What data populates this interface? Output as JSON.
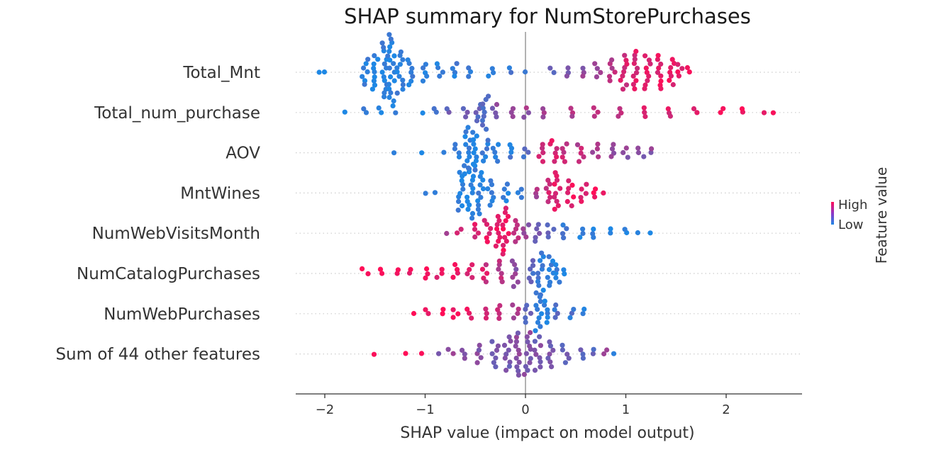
{
  "chart_data": {
    "type": "scatter",
    "subtype": "shap_beeswarm",
    "title": "SHAP summary for NumStorePurchases",
    "xlabel": "SHAP value (impact on model output)",
    "ylabel": "",
    "xlim": [
      -2.3,
      2.75
    ],
    "xticks": [
      -2,
      -1,
      0,
      1,
      2
    ],
    "xtick_labels": [
      "−2",
      "−1",
      "0",
      "1",
      "2"
    ],
    "zero_line": 0,
    "colormap": {
      "low": "#1E88E5",
      "high": "#FF0D57",
      "legend_high": "High",
      "legend_low": "Low",
      "legend_title": "Feature value"
    },
    "features": [
      {
        "name": "Total_Mnt",
        "points": [
          {
            "x": -2.06,
            "v": 0.0,
            "n": 1
          },
          {
            "x": -2.0,
            "v": 0.0,
            "n": 1
          },
          {
            "x": -1.6,
            "v": 0.05,
            "n": 7
          },
          {
            "x": -1.5,
            "v": 0.05,
            "n": 9
          },
          {
            "x": -1.4,
            "v": 0.05,
            "n": 14
          },
          {
            "x": -1.33,
            "v": 0.05,
            "n": 18
          },
          {
            "x": -1.25,
            "v": 0.05,
            "n": 11
          },
          {
            "x": -1.15,
            "v": 0.1,
            "n": 7
          },
          {
            "x": -1.0,
            "v": 0.1,
            "n": 5
          },
          {
            "x": -0.85,
            "v": 0.1,
            "n": 4
          },
          {
            "x": -0.7,
            "v": 0.1,
            "n": 4
          },
          {
            "x": -0.55,
            "v": 0.1,
            "n": 3
          },
          {
            "x": -0.35,
            "v": 0.1,
            "n": 3
          },
          {
            "x": -0.15,
            "v": 0.1,
            "n": 2
          },
          {
            "x": -0.03,
            "v": 0.1,
            "n": 1
          },
          {
            "x": 0.27,
            "v": 0.3,
            "n": 2
          },
          {
            "x": 0.42,
            "v": 0.4,
            "n": 3
          },
          {
            "x": 0.58,
            "v": 0.5,
            "n": 3
          },
          {
            "x": 0.72,
            "v": 0.6,
            "n": 4
          },
          {
            "x": 0.86,
            "v": 0.7,
            "n": 6
          },
          {
            "x": 0.98,
            "v": 0.82,
            "n": 9
          },
          {
            "x": 1.1,
            "v": 0.85,
            "n": 10
          },
          {
            "x": 1.22,
            "v": 0.88,
            "n": 9
          },
          {
            "x": 1.33,
            "v": 0.9,
            "n": 9
          },
          {
            "x": 1.45,
            "v": 0.9,
            "n": 7
          },
          {
            "x": 1.55,
            "v": 0.92,
            "n": 4
          },
          {
            "x": 1.63,
            "v": 0.95,
            "n": 2
          }
        ]
      },
      {
        "name": "Total_num_purchase",
        "points": [
          {
            "x": -1.8,
            "v": 0.05,
            "n": 1
          },
          {
            "x": -1.6,
            "v": 0.05,
            "n": 2
          },
          {
            "x": -1.45,
            "v": 0.05,
            "n": 2
          },
          {
            "x": -1.3,
            "v": 0.05,
            "n": 1
          },
          {
            "x": -1.05,
            "v": 0.05,
            "n": 1
          },
          {
            "x": -0.9,
            "v": 0.2,
            "n": 2
          },
          {
            "x": -0.75,
            "v": 0.3,
            "n": 2
          },
          {
            "x": -0.6,
            "v": 0.3,
            "n": 3
          },
          {
            "x": -0.48,
            "v": 0.3,
            "n": 5
          },
          {
            "x": -0.4,
            "v": 0.25,
            "n": 9
          },
          {
            "x": -0.3,
            "v": 0.45,
            "n": 4
          },
          {
            "x": -0.15,
            "v": 0.5,
            "n": 3
          },
          {
            "x": 0.0,
            "v": 0.55,
            "n": 3
          },
          {
            "x": 0.2,
            "v": 0.6,
            "n": 3
          },
          {
            "x": 0.45,
            "v": 0.65,
            "n": 3
          },
          {
            "x": 0.7,
            "v": 0.7,
            "n": 3
          },
          {
            "x": 0.95,
            "v": 0.75,
            "n": 3
          },
          {
            "x": 1.2,
            "v": 0.8,
            "n": 3
          },
          {
            "x": 1.45,
            "v": 0.85,
            "n": 3
          },
          {
            "x": 1.7,
            "v": 0.9,
            "n": 2
          },
          {
            "x": 1.95,
            "v": 0.92,
            "n": 2
          },
          {
            "x": 2.15,
            "v": 0.95,
            "n": 2
          },
          {
            "x": 2.35,
            "v": 0.95,
            "n": 1
          },
          {
            "x": 2.5,
            "v": 1.0,
            "n": 1
          }
        ]
      },
      {
        "name": "AOV",
        "points": [
          {
            "x": -1.3,
            "v": 0.0,
            "n": 1
          },
          {
            "x": -1.02,
            "v": 0.0,
            "n": 1
          },
          {
            "x": -0.8,
            "v": 0.05,
            "n": 1
          },
          {
            "x": -0.68,
            "v": 0.05,
            "n": 4
          },
          {
            "x": -0.58,
            "v": 0.05,
            "n": 12
          },
          {
            "x": -0.5,
            "v": 0.05,
            "n": 10
          },
          {
            "x": -0.4,
            "v": 0.08,
            "n": 6
          },
          {
            "x": -0.3,
            "v": 0.1,
            "n": 5
          },
          {
            "x": -0.15,
            "v": 0.1,
            "n": 4
          },
          {
            "x": 0.0,
            "v": 0.2,
            "n": 3
          },
          {
            "x": 0.15,
            "v": 0.75,
            "n": 5
          },
          {
            "x": 0.28,
            "v": 0.85,
            "n": 6
          },
          {
            "x": 0.4,
            "v": 0.75,
            "n": 5
          },
          {
            "x": 0.55,
            "v": 0.7,
            "n": 5
          },
          {
            "x": 0.7,
            "v": 0.6,
            "n": 4
          },
          {
            "x": 0.85,
            "v": 0.55,
            "n": 4
          },
          {
            "x": 1.0,
            "v": 0.5,
            "n": 3
          },
          {
            "x": 1.15,
            "v": 0.45,
            "n": 3
          },
          {
            "x": 1.27,
            "v": 0.5,
            "n": 2
          }
        ]
      },
      {
        "name": "MntWines",
        "points": [
          {
            "x": -1.0,
            "v": 0.0,
            "n": 1
          },
          {
            "x": -0.9,
            "v": 0.0,
            "n": 1
          },
          {
            "x": -0.65,
            "v": 0.05,
            "n": 10
          },
          {
            "x": -0.55,
            "v": 0.05,
            "n": 14
          },
          {
            "x": -0.45,
            "v": 0.05,
            "n": 11
          },
          {
            "x": -0.35,
            "v": 0.05,
            "n": 7
          },
          {
            "x": -0.2,
            "v": 0.08,
            "n": 5
          },
          {
            "x": -0.05,
            "v": 0.1,
            "n": 3
          },
          {
            "x": 0.1,
            "v": 0.6,
            "n": 3
          },
          {
            "x": 0.22,
            "v": 0.8,
            "n": 6
          },
          {
            "x": 0.32,
            "v": 0.85,
            "n": 10
          },
          {
            "x": 0.45,
            "v": 0.9,
            "n": 7
          },
          {
            "x": 0.58,
            "v": 0.92,
            "n": 5
          },
          {
            "x": 0.7,
            "v": 0.95,
            "n": 3
          },
          {
            "x": 0.79,
            "v": 1.0,
            "n": 1
          }
        ]
      },
      {
        "name": "NumWebVisitsMonth",
        "points": [
          {
            "x": -0.8,
            "v": 0.6,
            "n": 1
          },
          {
            "x": -0.65,
            "v": 0.75,
            "n": 2
          },
          {
            "x": -0.5,
            "v": 0.85,
            "n": 4
          },
          {
            "x": -0.38,
            "v": 0.88,
            "n": 6
          },
          {
            "x": -0.27,
            "v": 0.9,
            "n": 8
          },
          {
            "x": -0.2,
            "v": 0.9,
            "n": 12
          },
          {
            "x": -0.1,
            "v": 0.75,
            "n": 6
          },
          {
            "x": 0.0,
            "v": 0.5,
            "n": 4
          },
          {
            "x": 0.12,
            "v": 0.35,
            "n": 5
          },
          {
            "x": 0.25,
            "v": 0.25,
            "n": 4
          },
          {
            "x": 0.4,
            "v": 0.15,
            "n": 4
          },
          {
            "x": 0.55,
            "v": 0.1,
            "n": 3
          },
          {
            "x": 0.7,
            "v": 0.05,
            "n": 3
          },
          {
            "x": 0.85,
            "v": 0.05,
            "n": 2
          },
          {
            "x": 1.0,
            "v": 0.0,
            "n": 2
          },
          {
            "x": 1.15,
            "v": 0.0,
            "n": 1
          },
          {
            "x": 1.27,
            "v": 0.0,
            "n": 1
          }
        ]
      },
      {
        "name": "NumCatalogPurchases",
        "points": [
          {
            "x": -1.6,
            "v": 1.0,
            "n": 2
          },
          {
            "x": -1.45,
            "v": 1.0,
            "n": 2
          },
          {
            "x": -1.3,
            "v": 1.0,
            "n": 2
          },
          {
            "x": -1.15,
            "v": 0.95,
            "n": 2
          },
          {
            "x": -1.0,
            "v": 0.95,
            "n": 3
          },
          {
            "x": -0.85,
            "v": 0.9,
            "n": 3
          },
          {
            "x": -0.7,
            "v": 0.9,
            "n": 4
          },
          {
            "x": -0.55,
            "v": 0.85,
            "n": 4
          },
          {
            "x": -0.4,
            "v": 0.8,
            "n": 5
          },
          {
            "x": -0.25,
            "v": 0.7,
            "n": 6
          },
          {
            "x": -0.1,
            "v": 0.5,
            "n": 7
          },
          {
            "x": 0.05,
            "v": 0.25,
            "n": 6
          },
          {
            "x": 0.15,
            "v": 0.1,
            "n": 11
          },
          {
            "x": 0.25,
            "v": 0.05,
            "n": 8
          },
          {
            "x": 0.33,
            "v": 0.05,
            "n": 5
          },
          {
            "x": 0.41,
            "v": 0.0,
            "n": 2
          }
        ]
      },
      {
        "name": "NumWebPurchases",
        "points": [
          {
            "x": -1.13,
            "v": 1.0,
            "n": 1
          },
          {
            "x": -0.98,
            "v": 0.95,
            "n": 2
          },
          {
            "x": -0.85,
            "v": 0.95,
            "n": 2
          },
          {
            "x": -0.7,
            "v": 0.9,
            "n": 3
          },
          {
            "x": -0.55,
            "v": 0.9,
            "n": 3
          },
          {
            "x": -0.4,
            "v": 0.85,
            "n": 3
          },
          {
            "x": -0.25,
            "v": 0.75,
            "n": 4
          },
          {
            "x": -0.1,
            "v": 0.6,
            "n": 4
          },
          {
            "x": 0.03,
            "v": 0.3,
            "n": 5
          },
          {
            "x": 0.13,
            "v": 0.05,
            "n": 10
          },
          {
            "x": 0.22,
            "v": 0.05,
            "n": 6
          },
          {
            "x": 0.32,
            "v": 0.2,
            "n": 4
          },
          {
            "x": 0.45,
            "v": 0.15,
            "n": 3
          },
          {
            "x": 0.57,
            "v": 0.1,
            "n": 2
          }
        ]
      },
      {
        "name": "Sum of 44 other features",
        "points": [
          {
            "x": -1.5,
            "v": 1.0,
            "n": 1
          },
          {
            "x": -1.22,
            "v": 1.0,
            "n": 1
          },
          {
            "x": -1.05,
            "v": 1.0,
            "n": 1
          },
          {
            "x": -0.85,
            "v": 0.3,
            "n": 1
          },
          {
            "x": -0.75,
            "v": 0.5,
            "n": 2
          },
          {
            "x": -0.6,
            "v": 0.5,
            "n": 3
          },
          {
            "x": -0.45,
            "v": 0.45,
            "n": 5
          },
          {
            "x": -0.3,
            "v": 0.4,
            "n": 7
          },
          {
            "x": -0.18,
            "v": 0.4,
            "n": 9
          },
          {
            "x": -0.08,
            "v": 0.45,
            "n": 11
          },
          {
            "x": 0.02,
            "v": 0.45,
            "n": 11
          },
          {
            "x": 0.12,
            "v": 0.4,
            "n": 9
          },
          {
            "x": 0.25,
            "v": 0.4,
            "n": 7
          },
          {
            "x": 0.4,
            "v": 0.35,
            "n": 5
          },
          {
            "x": 0.55,
            "v": 0.3,
            "n": 3
          },
          {
            "x": 0.68,
            "v": 0.25,
            "n": 2
          },
          {
            "x": 0.78,
            "v": 0.5,
            "n": 2
          },
          {
            "x": 0.9,
            "v": 0.0,
            "n": 1
          }
        ]
      }
    ]
  }
}
